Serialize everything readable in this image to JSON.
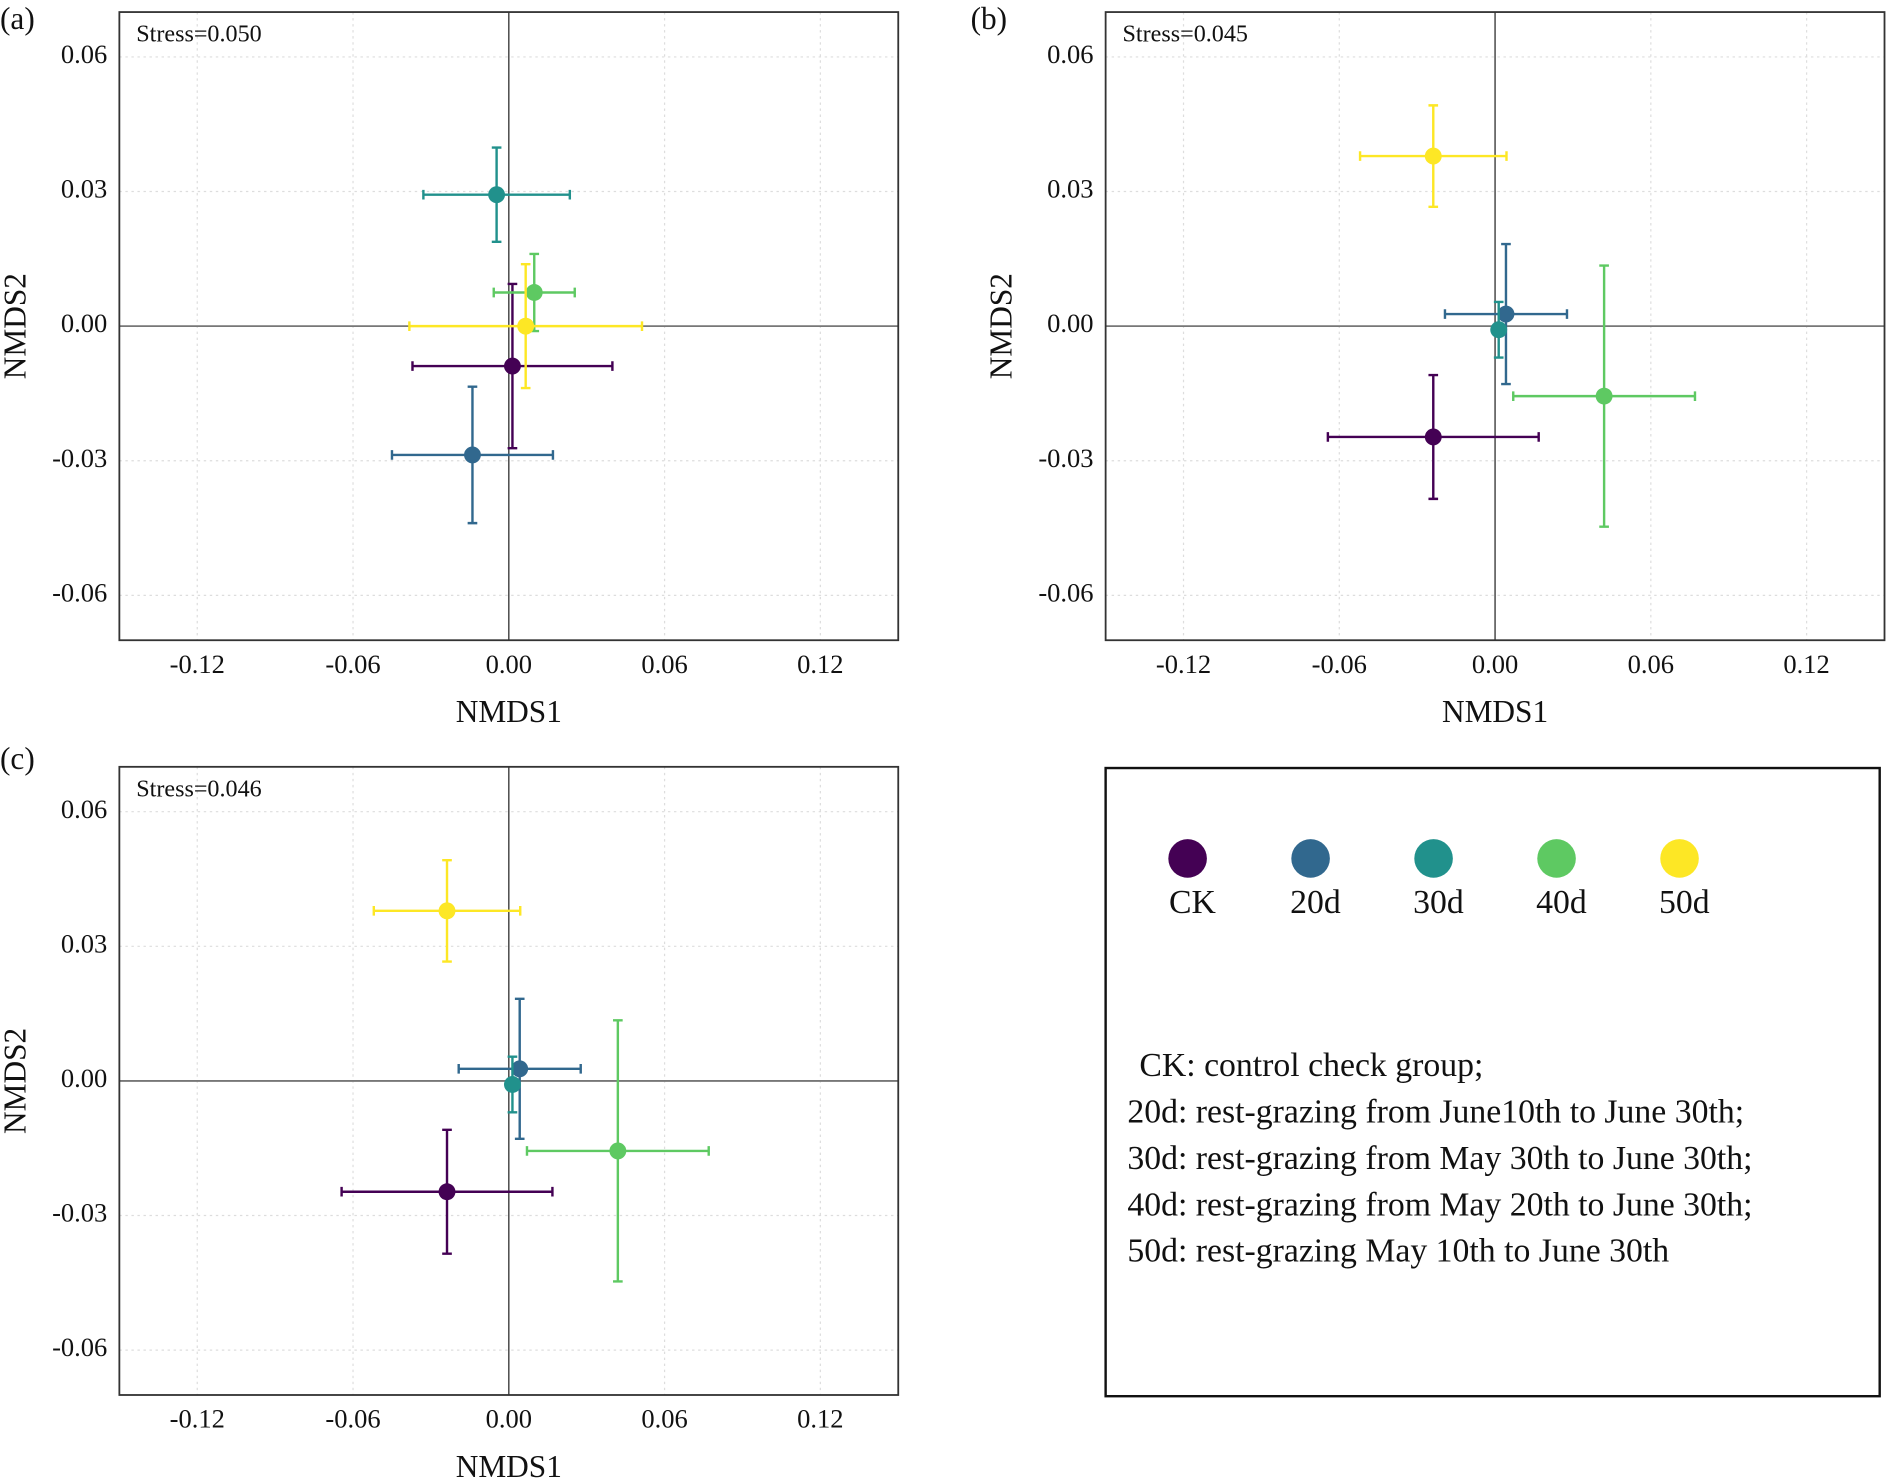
{
  "chart_data": [
    {
      "type": "scatter",
      "panel_label": "(a)",
      "annotation": "Stress=0.050",
      "x_label": "NMDS1",
      "y_label": "NMDS2",
      "xlim": [
        -0.15,
        0.15
      ],
      "ylim": [
        -0.07,
        0.07
      ],
      "xticks": [
        -0.12,
        -0.06,
        {
          "value": 0,
          "label": "0.00"
        },
        0.06,
        0.12
      ],
      "yticks": [
        -0.06,
        -0.03,
        {
          "value": 0,
          "label": "0.00"
        },
        0.03,
        0.06
      ],
      "grid": true,
      "series": [
        {
          "name": "CK",
          "color": "#440154",
          "x": [
            0.0014
          ],
          "values": [
            -0.0089
          ],
          "x_err": [
            0.0385
          ],
          "y_err": [
            0.0183
          ]
        },
        {
          "name": "20d",
          "color": "#31688e",
          "x": [
            -0.014
          ],
          "values": [
            -0.0287
          ],
          "x_err": [
            0.031
          ],
          "y_err": [
            0.0152
          ]
        },
        {
          "name": "30d",
          "color": "#21918c",
          "x": [
            -0.0047
          ],
          "values": [
            0.0293
          ],
          "x_err": [
            0.0282
          ],
          "y_err": [
            0.0105
          ]
        },
        {
          "name": "40d",
          "color": "#5ec962",
          "x": [
            0.0098
          ],
          "values": [
            0.0075
          ],
          "x_err": [
            0.0156
          ],
          "y_err": [
            0.0086
          ]
        },
        {
          "name": "50d",
          "color": "#fde725",
          "x": [
            0.0065
          ],
          "values": [
            0.0
          ],
          "x_err": [
            0.0448
          ],
          "y_err": [
            0.0138
          ]
        }
      ]
    },
    {
      "type": "scatter",
      "panel_label": "(b)",
      "annotation": "Stress=0.045",
      "x_label": "NMDS1",
      "y_label": "NMDS2",
      "xlim": [
        -0.15,
        0.15
      ],
      "ylim": [
        -0.07,
        0.07
      ],
      "xticks": [
        -0.12,
        -0.06,
        {
          "value": 0,
          "label": "0.00"
        },
        0.06,
        0.12
      ],
      "yticks": [
        -0.06,
        -0.03,
        {
          "value": 0,
          "label": "0.00"
        },
        0.03,
        0.06
      ],
      "grid": true,
      "series": [
        {
          "name": "CK",
          "color": "#440154",
          "x": [
            -0.0238
          ],
          "values": [
            -0.0247
          ],
          "x_err": [
            0.0406
          ],
          "y_err": [
            0.0138
          ]
        },
        {
          "name": "20d",
          "color": "#31688e",
          "x": [
            0.0042
          ],
          "values": [
            0.0027
          ],
          "x_err": [
            0.0235
          ],
          "y_err": [
            0.0156
          ]
        },
        {
          "name": "30d",
          "color": "#21918c",
          "x": [
            0.0014
          ],
          "values": [
            -0.0008
          ],
          "x_err": [
            0.0019
          ],
          "y_err": [
            0.0062
          ]
        },
        {
          "name": "40d",
          "color": "#5ec962",
          "x": [
            0.042
          ],
          "values": [
            -0.0156
          ],
          "x_err": [
            0.035
          ],
          "y_err": [
            0.0291
          ]
        },
        {
          "name": "50d",
          "color": "#fde725",
          "x": [
            -0.0238
          ],
          "values": [
            0.0379
          ],
          "x_err": [
            0.0282
          ],
          "y_err": [
            0.0113
          ]
        }
      ]
    },
    {
      "type": "scatter",
      "panel_label": "(c)",
      "annotation": "Stress=0.046",
      "x_label": "NMDS1",
      "y_label": "NMDS2",
      "xlim": [
        -0.15,
        0.15
      ],
      "ylim": [
        -0.07,
        0.07
      ],
      "xticks": [
        -0.12,
        -0.06,
        {
          "value": 0,
          "label": "0.00"
        },
        0.06,
        0.12
      ],
      "yticks": [
        -0.06,
        -0.03,
        {
          "value": 0,
          "label": "0.00"
        },
        0.03,
        0.06
      ],
      "grid": true,
      "series": [
        {
          "name": "CK",
          "color": "#440154",
          "x": [
            -0.0238
          ],
          "values": [
            -0.0247
          ],
          "x_err": [
            0.0406
          ],
          "y_err": [
            0.0138
          ]
        },
        {
          "name": "20d",
          "color": "#31688e",
          "x": [
            0.0042
          ],
          "values": [
            0.0027
          ],
          "x_err": [
            0.0235
          ],
          "y_err": [
            0.0156
          ]
        },
        {
          "name": "30d",
          "color": "#21918c",
          "x": [
            0.0014
          ],
          "values": [
            -0.0008
          ],
          "x_err": [
            0.0019
          ],
          "y_err": [
            0.0062
          ]
        },
        {
          "name": "40d",
          "color": "#5ec962",
          "x": [
            0.042
          ],
          "values": [
            -0.0156
          ],
          "x_err": [
            0.035
          ],
          "y_err": [
            0.0291
          ]
        },
        {
          "name": "50d",
          "color": "#fde725",
          "x": [
            -0.0238
          ],
          "values": [
            0.0379
          ],
          "x_err": [
            0.0282
          ],
          "y_err": [
            0.0113
          ]
        }
      ]
    }
  ],
  "legend": {
    "notes": [
      "CK: control check group;",
      "20d: rest-grazing from June10th to June 30th;",
      "30d: rest-grazing from May 30th to June 30th;",
      "40d: rest-grazing from May 20th to June 30th;",
      "50d: rest-grazing May 10th to June 30th"
    ]
  }
}
